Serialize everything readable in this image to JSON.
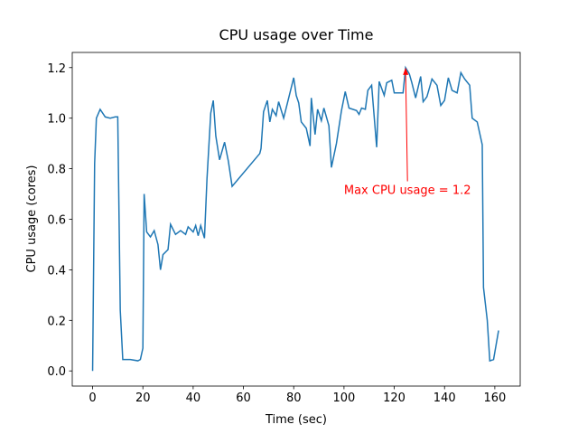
{
  "chart_data": {
    "type": "line",
    "title": "CPU usage over Time",
    "xlabel": "Time (sec)",
    "ylabel": "CPU usage (cores)",
    "x": [
      0,
      0.8,
      1.5,
      3,
      5,
      7,
      9,
      10,
      11,
      12,
      15,
      18,
      19,
      20,
      20.5,
      21.5,
      23,
      24.5,
      26,
      27,
      28,
      30,
      31,
      33,
      35,
      37,
      38,
      40,
      41,
      42,
      43,
      44.5,
      45.5,
      47,
      48,
      49,
      50.5,
      52.5,
      54,
      55.5,
      66.5,
      67,
      68,
      69.5,
      70.5,
      71.5,
      73,
      74,
      76,
      77.5,
      80,
      81,
      82,
      83,
      85,
      86.5,
      87,
      88.5,
      89.5,
      91,
      92,
      94,
      95,
      97,
      99,
      100.5,
      102,
      105,
      106,
      107,
      108.5,
      109.5,
      111,
      113,
      114,
      116,
      117,
      119,
      120,
      121.5,
      123.5,
      124.5,
      126,
      127,
      128.5,
      130.5,
      131.5,
      133,
      135,
      137,
      138.5,
      140,
      141.5,
      143,
      145,
      146.5,
      148,
      150,
      151,
      153,
      155,
      155.5,
      157,
      158,
      159.5,
      161.5
    ],
    "series": [
      {
        "name": "CPU usage",
        "color": "#1f77b4",
        "values": [
          0,
          0.82,
          1.0,
          1.035,
          1.005,
          1.0,
          1.005,
          1.005,
          0.24,
          0.045,
          0.045,
          0.04,
          0.045,
          0.09,
          0.7,
          0.55,
          0.53,
          0.555,
          0.5,
          0.4,
          0.46,
          0.48,
          0.58,
          0.54,
          0.555,
          0.54,
          0.57,
          0.55,
          0.575,
          0.535,
          0.575,
          0.525,
          0.76,
          1.02,
          1.07,
          0.93,
          0.835,
          0.905,
          0.83,
          0.73,
          0.86,
          0.88,
          1.025,
          1.07,
          0.985,
          1.035,
          1.01,
          1.065,
          1.0,
          1.06,
          1.16,
          1.09,
          1.06,
          0.985,
          0.96,
          0.89,
          1.08,
          0.935,
          1.035,
          0.99,
          1.04,
          0.97,
          0.805,
          0.9,
          1.03,
          1.105,
          1.04,
          1.03,
          1.015,
          1.04,
          1.035,
          1.11,
          1.13,
          0.885,
          1.145,
          1.09,
          1.14,
          1.15,
          1.1,
          1.1,
          1.1,
          1.2,
          1.175,
          1.14,
          1.08,
          1.165,
          1.065,
          1.085,
          1.155,
          1.13,
          1.05,
          1.07,
          1.16,
          1.11,
          1.1,
          1.18,
          1.155,
          1.13,
          1.0,
          0.985,
          0.895,
          0.33,
          0.2,
          0.04,
          0.045,
          0.16
        ]
      }
    ],
    "annotation": {
      "text": "Max CPU usage = 1.2",
      "x": 124.5,
      "y": 1.2,
      "text_x": 100,
      "text_y": 0.7,
      "color": "red"
    },
    "xlim": [
      -8.1,
      170.1
    ],
    "ylim": [
      -0.06,
      1.26
    ],
    "xticks": [
      0,
      20,
      40,
      60,
      80,
      100,
      120,
      140,
      160
    ],
    "yticks": [
      {
        "value": 0,
        "label": "0.0"
      },
      0.2,
      0.4,
      0.6,
      0.8,
      {
        "value": 1,
        "label": "1.0"
      },
      1.2
    ]
  }
}
